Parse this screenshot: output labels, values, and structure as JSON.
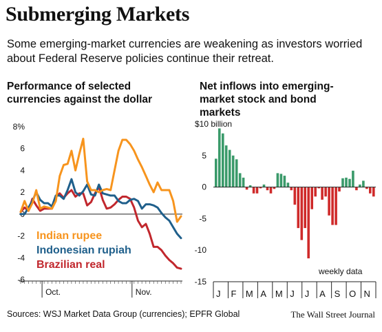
{
  "title": "Submerging Markets",
  "subtitle": "Some emerging-market currencies are weakening as investors worried about Federal Reserve policies continue their retreat.",
  "footer": {
    "sources": "Sources: WSJ Market Data Group (currencies); EPFR Global",
    "credit": "The Wall Street Journal"
  },
  "colors": {
    "orange": "#f7941d",
    "blue": "#1f5f8b",
    "red": "#c1272d",
    "green": "#3a9a6a",
    "negative": "#cf2a2a"
  },
  "chart_data": [
    {
      "type": "line",
      "title": "Performance of selected currencies against the dollar",
      "xlabel": "",
      "ylabel": "",
      "ylim": [
        -6,
        8
      ],
      "yticks": [
        8,
        6,
        4,
        2,
        0,
        -2,
        -4,
        -6
      ],
      "ytick_labels": [
        "8%",
        "6",
        "4",
        "2",
        "0",
        "-2",
        "-4",
        "-6"
      ],
      "xticks": [
        "Oct.",
        "Nov."
      ],
      "x": [
        "Sep 23",
        "Sep 24",
        "Sep 25",
        "Sep 26",
        "Sep 27",
        "Sep 30",
        "Oct 1",
        "Oct 2",
        "Oct 3",
        "Oct 4",
        "Oct 7",
        "Oct 8",
        "Oct 9",
        "Oct 10",
        "Oct 11",
        "Oct 14",
        "Oct 15",
        "Oct 16",
        "Oct 17",
        "Oct 18",
        "Oct 21",
        "Oct 22",
        "Oct 23",
        "Oct 24",
        "Oct 25",
        "Oct 28",
        "Oct 29",
        "Oct 30",
        "Oct 31",
        "Nov 1",
        "Nov 4",
        "Nov 5",
        "Nov 6",
        "Nov 7",
        "Nov 8",
        "Nov 11",
        "Nov 12",
        "Nov 13",
        "Nov 14",
        "Nov 15",
        "Nov 18",
        "Nov 19"
      ],
      "grid": false,
      "series": [
        {
          "name": "Indian rupee",
          "color": "#f7941d",
          "values": [
            0.2,
            1.2,
            0.3,
            1.0,
            2.2,
            0.5,
            0.7,
            0.6,
            0.5,
            1.2,
            3.5,
            4.5,
            4.6,
            5.8,
            4.0,
            5.5,
            6.9,
            3.0,
            2.2,
            2.2,
            2.0,
            2.2,
            2.3,
            2.2,
            4.0,
            5.8,
            6.8,
            6.8,
            6.4,
            5.8,
            5.0,
            4.3,
            3.5,
            2.7,
            2.0,
            2.9,
            2.2,
            2.2,
            2.2,
            1.2,
            -0.7,
            -0.2
          ]
        },
        {
          "name": "Indonesian rupiah",
          "color": "#1f5f8b",
          "values": [
            0.0,
            0.0,
            0.6,
            1.2,
            2.0,
            1.3,
            1.0,
            1.0,
            0.7,
            1.7,
            1.7,
            1.4,
            2.2,
            3.2,
            2.0,
            1.7,
            2.1,
            2.7,
            1.8,
            1.7,
            2.7,
            1.9,
            1.8,
            1.7,
            1.7,
            1.2,
            1.0,
            1.0,
            1.3,
            1.4,
            1.2,
            0.5,
            0.9,
            0.9,
            0.8,
            0.6,
            0.1,
            -0.3,
            -0.6,
            -1.2,
            -1.8,
            -2.2
          ]
        },
        {
          "name": "Brazilian real",
          "color": "#c1272d",
          "values": [
            0.2,
            0.6,
            0.3,
            1.4,
            0.8,
            0.3,
            0.5,
            0.5,
            0.5,
            1.6,
            1.9,
            1.5,
            1.9,
            2.2,
            1.6,
            1.9,
            1.9,
            0.8,
            1.1,
            1.9,
            2.5,
            1.3,
            0.5,
            0.6,
            0.9,
            1.3,
            1.6,
            1.6,
            1.4,
            0.6,
            -0.6,
            -1.2,
            -0.9,
            -1.8,
            -3.0,
            -3.0,
            -3.3,
            -3.8,
            -4.2,
            -4.5,
            -4.9,
            -5.0
          ]
        }
      ]
    },
    {
      "type": "bar",
      "title": "Net inflows into emerging-market stock and bond markets",
      "xlabel": "",
      "ylabel": "",
      "ylim": [
        -15,
        10
      ],
      "yticks": [
        10,
        5,
        0,
        -5,
        -10,
        -15
      ],
      "ytick_labels": [
        "$10 billion",
        "5",
        "0",
        "-5",
        "-10",
        "-15"
      ],
      "xticks": [
        "J",
        "F",
        "M",
        "A",
        "M",
        "J",
        "J",
        "A",
        "S",
        "O",
        "N"
      ],
      "annotation": "weekly data",
      "grid": false,
      "values": [
        4.5,
        9.3,
        8.5,
        6.6,
        5.9,
        5.0,
        4.4,
        2.2,
        1.5,
        -0.4,
        0.3,
        -1.0,
        -1.0,
        -0.2,
        0.4,
        -0.5,
        -1.0,
        -0.3,
        2.2,
        2.1,
        1.8,
        0.7,
        -0.5,
        -2.8,
        -6.5,
        -8.4,
        -6.5,
        -11.3,
        -3.5,
        -1.5,
        -0.2,
        -2.0,
        -1.5,
        -4.5,
        -6.0,
        -6.0,
        -0.7,
        1.4,
        1.5,
        1.3,
        2.6,
        -0.5,
        0.4,
        1.0,
        -0.3,
        -1.0,
        -1.5
      ]
    }
  ]
}
